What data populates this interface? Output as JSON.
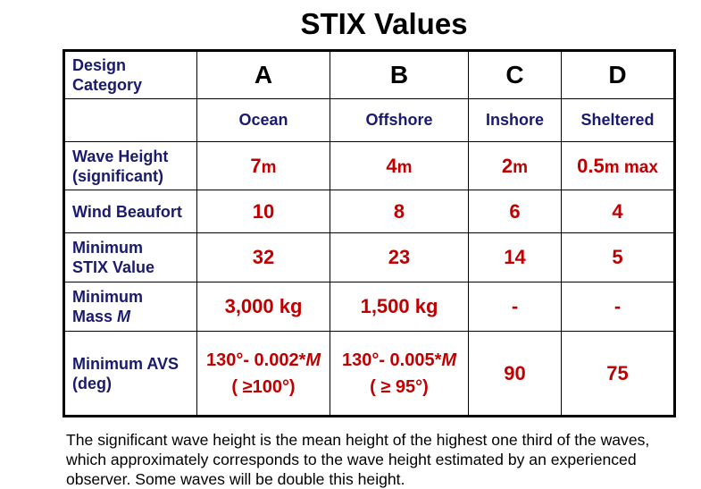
{
  "title": "STIX Values",
  "header": {
    "design_category": [
      "Design",
      "Category"
    ],
    "categories": [
      {
        "letter": "A",
        "name": "Ocean"
      },
      {
        "letter": "B",
        "name": "Offshore"
      },
      {
        "letter": "C",
        "name": "Inshore"
      },
      {
        "letter": "D",
        "name": "Sheltered"
      }
    ]
  },
  "rows": {
    "wave_height": {
      "label": [
        "Wave Height",
        "(significant)"
      ],
      "values": [
        {
          "num": "7",
          "unit": "m"
        },
        {
          "num": "4",
          "unit": "m"
        },
        {
          "num": "2",
          "unit": "m"
        },
        {
          "num": "0.5",
          "unit": "m max"
        }
      ]
    },
    "wind": {
      "label": [
        "Wind Beaufort"
      ],
      "values": [
        "10",
        "8",
        "6",
        "4"
      ]
    },
    "min_stix": {
      "label": [
        "Minimum",
        "STIX Value"
      ],
      "values": [
        "32",
        "23",
        "14",
        "5"
      ]
    },
    "min_mass": {
      "label": [
        "Minimum",
        "Mass"
      ],
      "label_symbol": "M",
      "values": [
        "3,000 kg",
        "1,500 kg",
        "-",
        "-"
      ]
    },
    "min_avs": {
      "label": [
        "Minimum AVS",
        "(deg)"
      ],
      "a": {
        "line1": "130°- 0.002*",
        "sym": "M",
        "line2": "( ≥100°)"
      },
      "b": {
        "line1": "130°- 0.005*",
        "sym": "M",
        "line2": "( ≥ 95°)"
      },
      "c": "90",
      "d": "75"
    }
  },
  "caption": "The significant wave height is the mean height of the highest one third of the waves, which approximately corresponds to the wave height estimated by an experienced observer. Some waves will be double this height.",
  "colors": {
    "value_red": "#c00000",
    "label_navy": "#1a1a6e"
  }
}
